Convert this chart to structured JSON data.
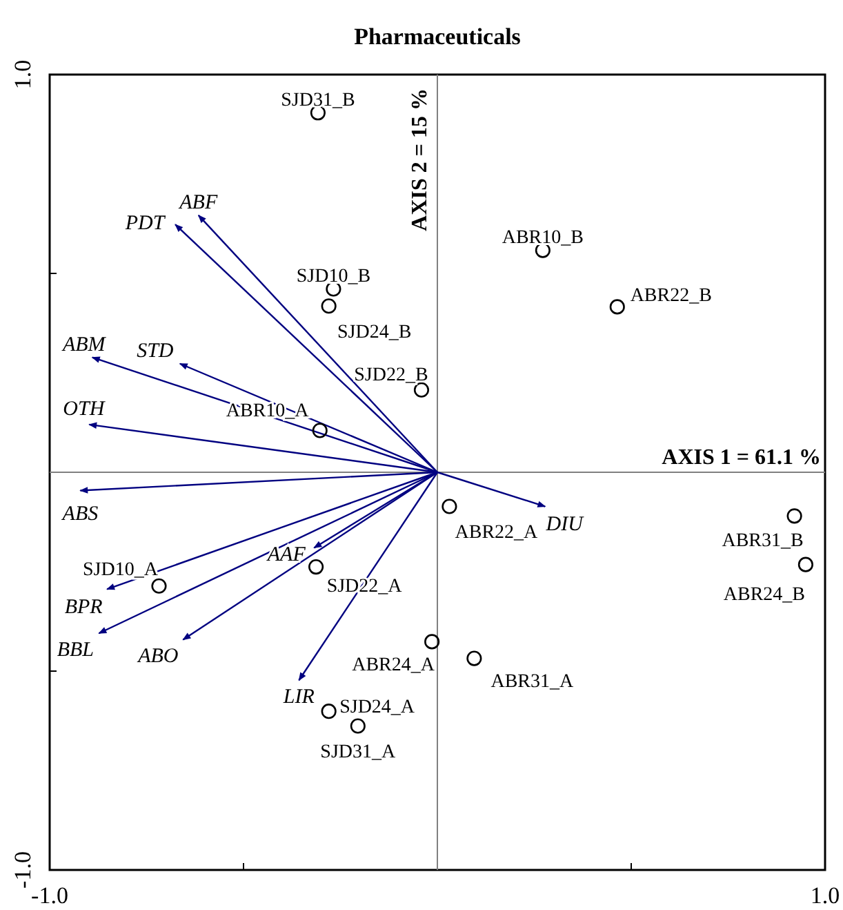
{
  "chart_data": {
    "type": "scatter",
    "title": "Pharmaceuticals",
    "xlim": [
      -1,
      1
    ],
    "ylim": [
      -1,
      1
    ],
    "xticks": [
      {
        "value": -1,
        "label": "-1.0"
      },
      {
        "value": -0.5,
        "label": null
      },
      {
        "value": 0,
        "label": null
      },
      {
        "value": 0.5,
        "label": null
      },
      {
        "value": 1,
        "label": "1.0"
      }
    ],
    "yticks": [
      {
        "value": -1,
        "label": "-1.0"
      },
      {
        "value": -0.5,
        "label": null
      },
      {
        "value": 0,
        "label": null
      },
      {
        "value": 0.5,
        "label": null
      },
      {
        "value": 1,
        "label": "1.0"
      }
    ],
    "xlabel": "AXIS 1 = 61.1 %",
    "ylabel": "AXIS 2 = 15 %",
    "series": [
      {
        "name": "SJD31_B",
        "x": [
          -0.308
        ],
        "values": [
          0.904
        ],
        "color": "#000000",
        "marker": "circle"
      },
      {
        "name": "SJD10_B",
        "x": [
          -0.268
        ],
        "values": [
          0.461
        ],
        "color": "#000000",
        "marker": "circle"
      },
      {
        "name": "SJD24_B",
        "x": [
          -0.28
        ],
        "values": [
          0.418
        ],
        "color": "#000000",
        "marker": "circle"
      },
      {
        "name": "SJD22_B",
        "x": [
          -0.041
        ],
        "values": [
          0.207
        ],
        "color": "#000000",
        "marker": "circle"
      },
      {
        "name": "ABR10_A",
        "x": [
          -0.303
        ],
        "values": [
          0.105
        ],
        "color": "#000000",
        "marker": "circle"
      },
      {
        "name": "SJD10_A",
        "x": [
          -0.718
        ],
        "values": [
          -0.286
        ],
        "color": "#000000",
        "marker": "circle"
      },
      {
        "name": "SJD22_A",
        "x": [
          -0.313
        ],
        "values": [
          -0.238
        ],
        "color": "#000000",
        "marker": "circle"
      },
      {
        "name": "ABR24_A",
        "x": [
          -0.014
        ],
        "values": [
          -0.426
        ],
        "color": "#000000",
        "marker": "circle"
      },
      {
        "name": "SJD24_A",
        "x": [
          -0.28
        ],
        "values": [
          -0.601
        ],
        "color": "#000000",
        "marker": "circle"
      },
      {
        "name": "SJD31_A",
        "x": [
          -0.205
        ],
        "values": [
          -0.638
        ],
        "color": "#000000",
        "marker": "circle"
      },
      {
        "name": "ABR22_A",
        "x": [
          0.031
        ],
        "values": [
          -0.086
        ],
        "color": "#000000",
        "marker": "circle"
      },
      {
        "name": "ABR31_A",
        "x": [
          0.095
        ],
        "values": [
          -0.468
        ],
        "color": "#000000",
        "marker": "circle"
      },
      {
        "name": "ABR10_B",
        "x": [
          0.272
        ],
        "values": [
          0.558
        ],
        "color": "#000000",
        "marker": "circle"
      },
      {
        "name": "ABR22_B",
        "x": [
          0.464
        ],
        "values": [
          0.416
        ],
        "color": "#000000",
        "marker": "circle"
      },
      {
        "name": "ABR31_B",
        "x": [
          0.921
        ],
        "values": [
          -0.11
        ],
        "color": "#000000",
        "marker": "circle"
      },
      {
        "name": "ABR24_B",
        "x": [
          0.95
        ],
        "values": [
          -0.232
        ],
        "color": "#000000",
        "marker": "circle"
      },
      {
        "type": "line",
        "name": "ABF",
        "x": [
          0,
          -0.616
        ],
        "values": [
          0,
          0.646
        ],
        "color": "#000080",
        "marker": "none"
      },
      {
        "type": "line",
        "name": "PDT",
        "x": [
          0,
          -0.676
        ],
        "values": [
          0,
          0.623
        ],
        "color": "#000080",
        "marker": "none"
      },
      {
        "type": "line",
        "name": "ABM",
        "x": [
          0,
          -0.89
        ],
        "values": [
          0,
          0.289
        ],
        "color": "#000080",
        "marker": "none"
      },
      {
        "type": "line",
        "name": "STD",
        "x": [
          0,
          -0.664
        ],
        "values": [
          0,
          0.273
        ],
        "color": "#000080",
        "marker": "none"
      },
      {
        "type": "line",
        "name": "OTH",
        "x": [
          0,
          -0.898
        ],
        "values": [
          0,
          0.12
        ],
        "color": "#000080",
        "marker": "none"
      },
      {
        "type": "line",
        "name": "ABS",
        "x": [
          0,
          -0.921
        ],
        "values": [
          0,
          -0.046
        ],
        "color": "#000080",
        "marker": "none"
      },
      {
        "type": "line",
        "name": "BPR",
        "x": [
          0,
          -0.852
        ],
        "values": [
          0,
          -0.294
        ],
        "color": "#000080",
        "marker": "none"
      },
      {
        "type": "line",
        "name": "BBL",
        "x": [
          0,
          -0.873
        ],
        "values": [
          0,
          -0.405
        ],
        "color": "#000080",
        "marker": "none"
      },
      {
        "type": "line",
        "name": "ABO",
        "x": [
          0,
          -0.656
        ],
        "values": [
          0,
          -0.421
        ],
        "color": "#000080",
        "marker": "none"
      },
      {
        "type": "line",
        "name": "AAF",
        "x": [
          0,
          -0.318
        ],
        "values": [
          0,
          -0.19
        ],
        "color": "#000080",
        "marker": "none"
      },
      {
        "type": "line",
        "name": "LIR",
        "x": [
          0,
          -0.357
        ],
        "values": [
          0,
          -0.523
        ],
        "color": "#000080",
        "marker": "none"
      },
      {
        "type": "line",
        "name": "DIU",
        "x": [
          0,
          0.278
        ],
        "values": [
          0,
          -0.086
        ],
        "color": "#000080",
        "marker": "none"
      }
    ]
  }
}
